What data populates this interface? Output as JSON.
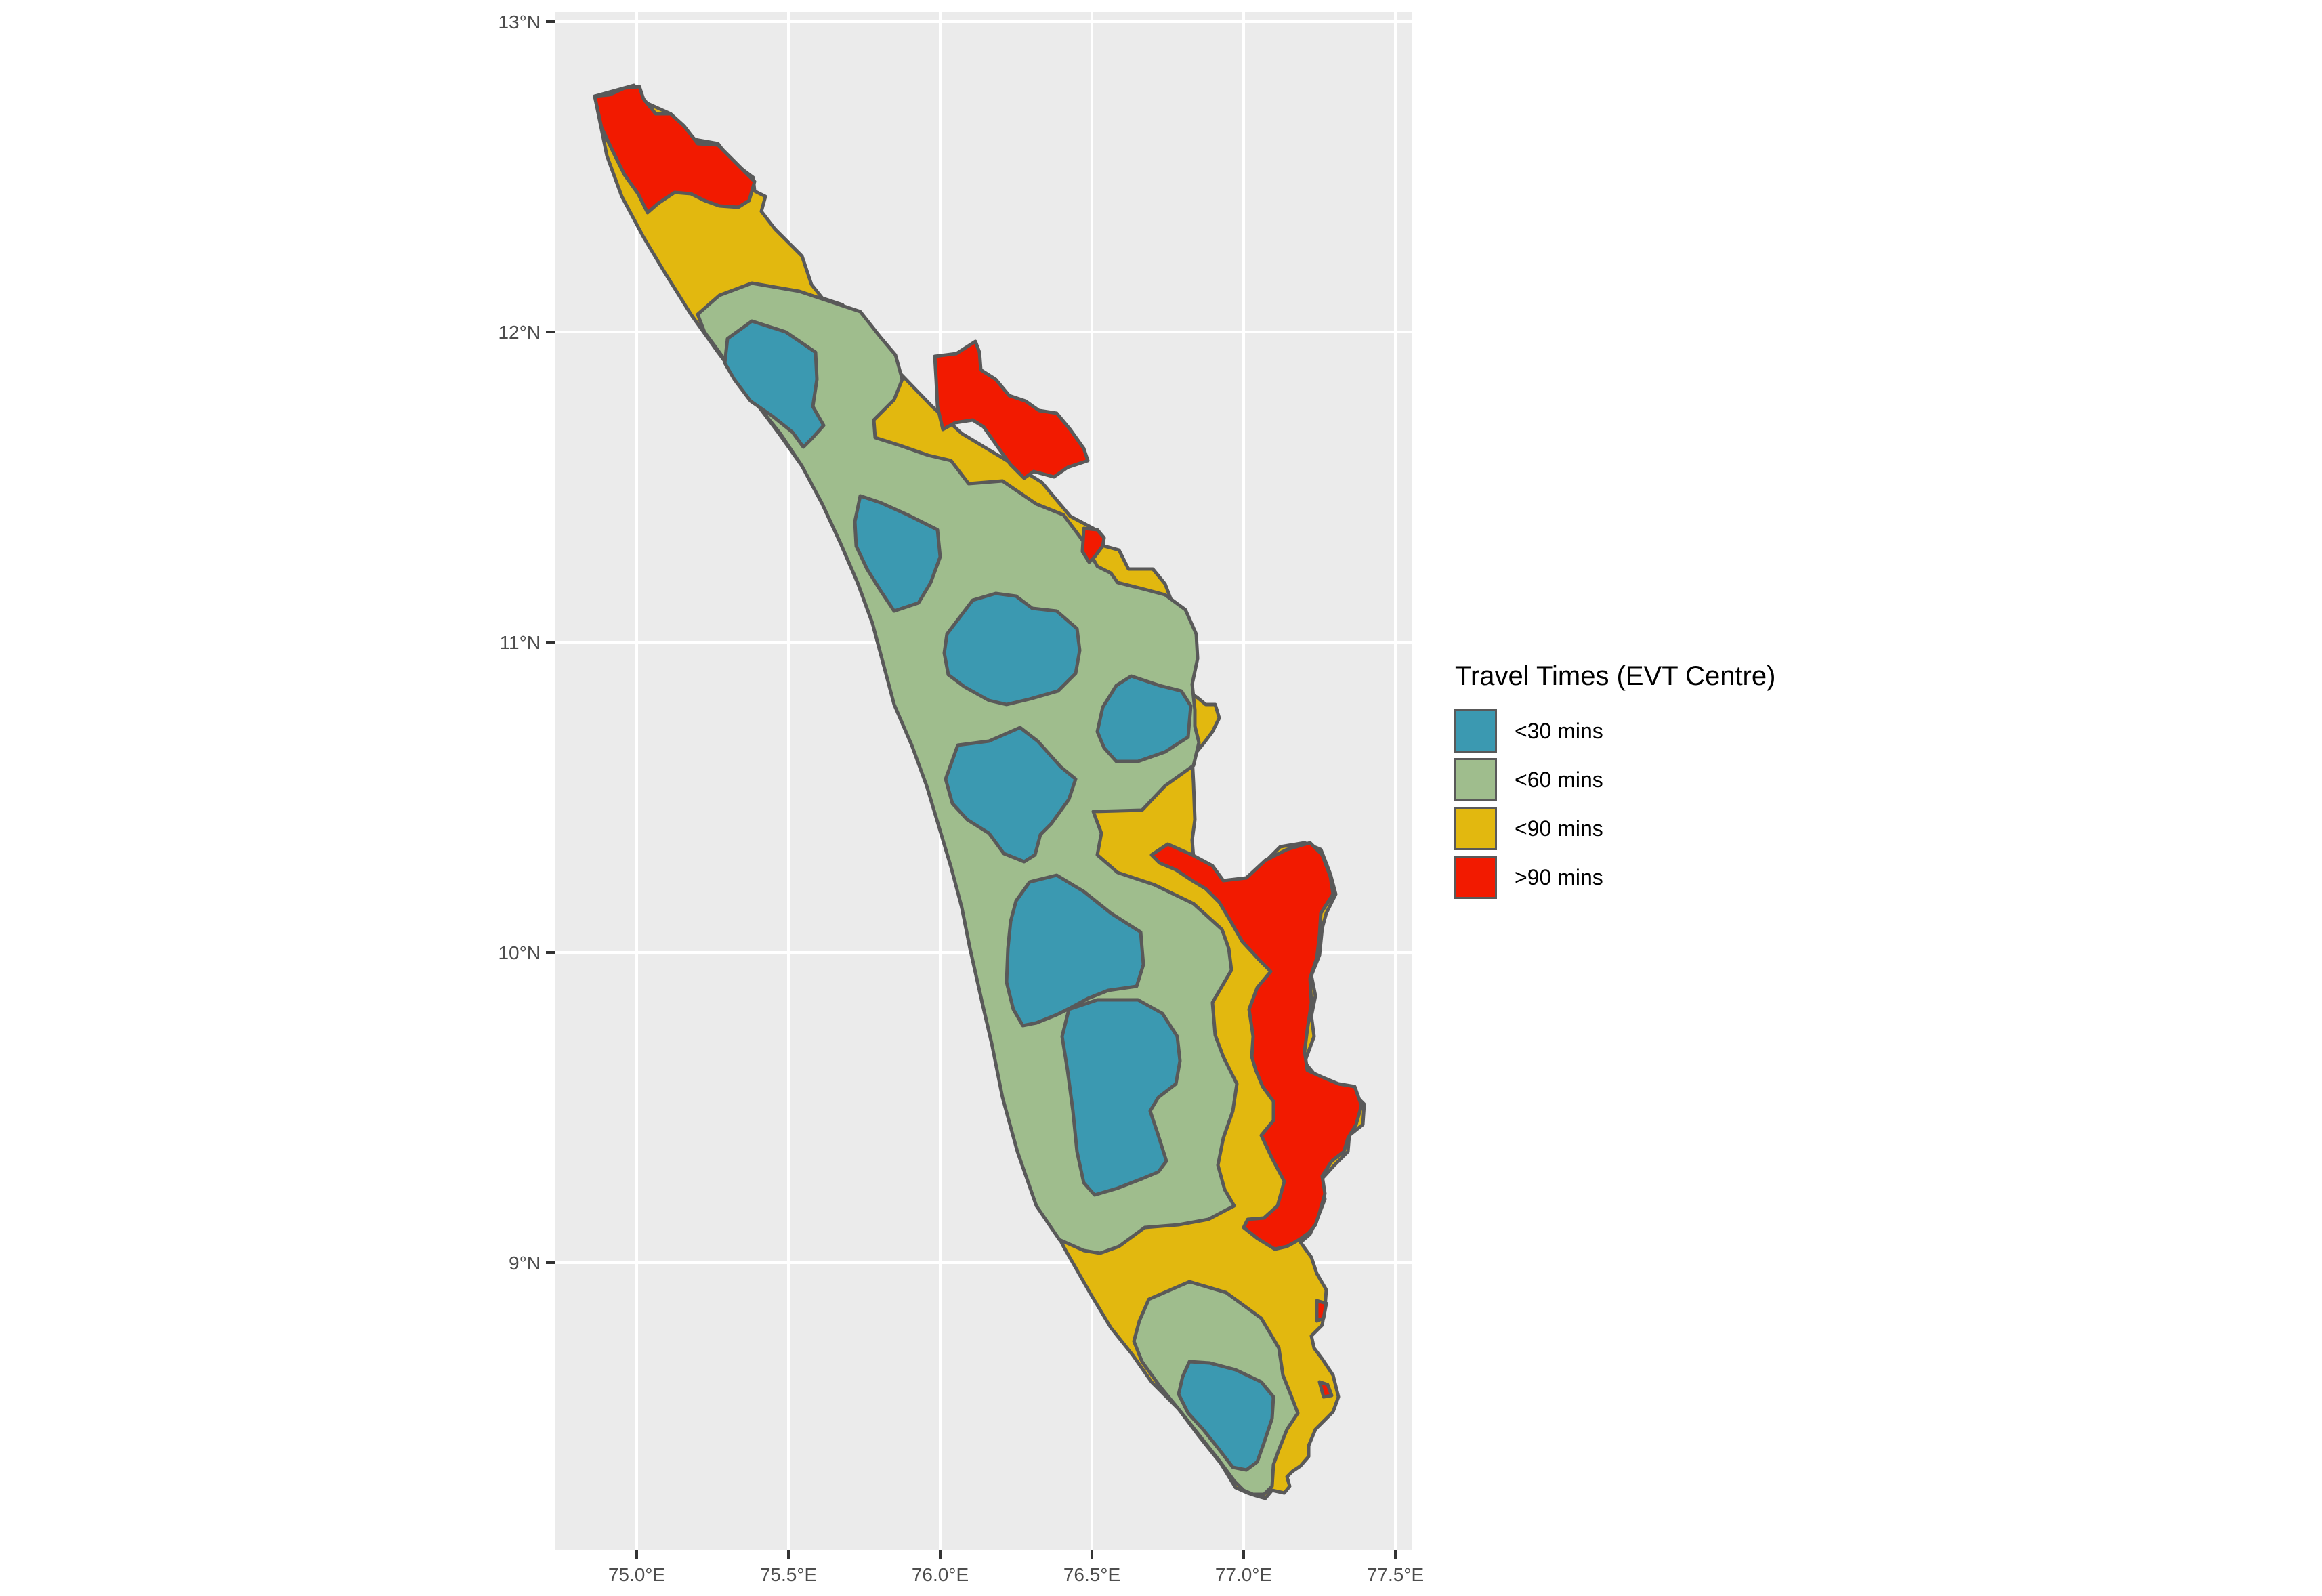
{
  "map": {
    "x_tick_labels": [
      "75.0°E",
      "75.5°E",
      "76.0°E",
      "76.5°E",
      "77.0°E",
      "77.5°E"
    ],
    "y_tick_labels": [
      "13°N",
      "12°N",
      "11°N",
      "10°N",
      "9°N"
    ],
    "panel_color": "#ebebeb",
    "grid_color": "#ffffff",
    "border_color": "#595959"
  },
  "legend": {
    "title": "Travel Times  (EVT Centre)",
    "items": [
      {
        "label": "<30 mins",
        "color": "#3b99b1"
      },
      {
        "label": "<60 mins",
        "color": "#9fbd8d"
      },
      {
        "label": "<90 mins",
        "color": "#e2b80f"
      },
      {
        "label": ">90 mins",
        "color": "#f21a00"
      }
    ]
  }
}
